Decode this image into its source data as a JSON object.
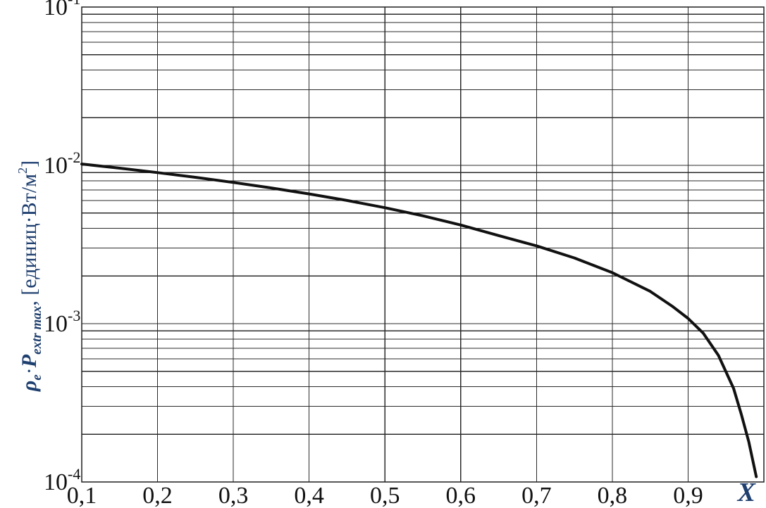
{
  "chart_data": {
    "type": "line",
    "title": "",
    "xlabel": "X",
    "ylabel": {
      "symbol_rho": "ρ",
      "subscript_e": "e",
      "dot": "·",
      "symbol_P": "P",
      "subscript_extr_max": "extr max",
      "unit_prefix": ", [единиц·Вт/м",
      "unit_exponent": "2",
      "unit_suffix": "]"
    },
    "x_ticks": [
      "0,1",
      "0,2",
      "0,3",
      "0,4",
      "0,5",
      "0,6",
      "0,7",
      "0,8",
      "0,9"
    ],
    "x_tick_values": [
      0.1,
      0.2,
      0.3,
      0.4,
      0.5,
      0.6,
      0.7,
      0.8,
      0.9
    ],
    "y_ticks": [
      {
        "value": 0.1,
        "base": "10",
        "exp": "-1"
      },
      {
        "value": 0.01,
        "base": "10",
        "exp": "-2"
      },
      {
        "value": 0.001,
        "base": "10",
        "exp": "-3"
      },
      {
        "value": 0.0001,
        "base": "10",
        "exp": "-4"
      }
    ],
    "xlim": [
      0.1,
      1.0
    ],
    "ylim": [
      0.0001,
      0.12
    ],
    "yscale": "log",
    "grid": true,
    "series": [
      {
        "x": [
          0.1,
          0.15,
          0.2,
          0.25,
          0.3,
          0.35,
          0.4,
          0.45,
          0.5,
          0.55,
          0.6,
          0.65,
          0.7,
          0.75,
          0.8,
          0.85,
          0.88,
          0.9,
          0.92,
          0.94,
          0.96,
          0.97,
          0.98,
          0.99
        ],
        "y": [
          0.0102,
          0.0096,
          0.009,
          0.0084,
          0.0078,
          0.0072,
          0.0066,
          0.006,
          0.0054,
          0.0048,
          0.0042,
          0.0036,
          0.0031,
          0.0026,
          0.0021,
          0.0016,
          0.00128,
          0.00108,
          0.00087,
          0.00063,
          0.00039,
          0.00027,
          0.00018,
          0.000108
        ]
      }
    ]
  }
}
